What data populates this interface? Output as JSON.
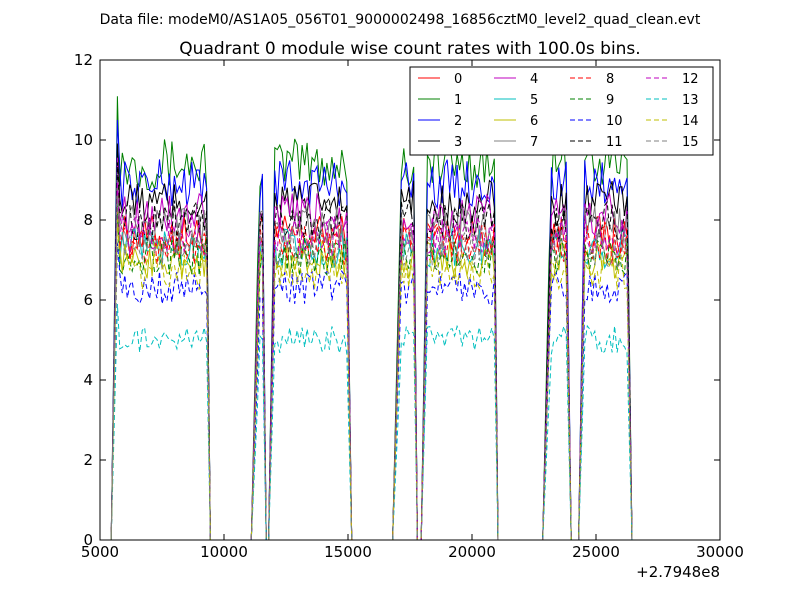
{
  "suptitle": "Data file: modeM0/AS1A05_056T01_9000002498_16856cztM0_level2_quad_clean.evt",
  "chart_data": {
    "type": "line",
    "title": "Quadrant 0 module wise count rates with 100.0s bins.",
    "xlabel": "",
    "ylabel": "",
    "xlim": [
      5000,
      30000
    ],
    "ylim": [
      0,
      12
    ],
    "x_offset_label": "+2.7948e8",
    "x_ticks": [
      5000,
      10000,
      15000,
      20000,
      25000,
      30000
    ],
    "y_ticks": [
      0,
      2,
      4,
      6,
      8,
      10,
      12
    ],
    "grid": false,
    "legend_placement": "top-right",
    "legend_columns": 4,
    "active_segments": [
      [
        5700,
        9300
      ],
      [
        11350,
        11550
      ],
      [
        12050,
        15000
      ],
      [
        17050,
        17650
      ],
      [
        18200,
        20900
      ],
      [
        23100,
        23850
      ],
      [
        24550,
        26300
      ]
    ],
    "series": [
      {
        "name": "0",
        "color": "#ff0000",
        "dash": "solid",
        "level": 7.6
      },
      {
        "name": "1",
        "color": "#008000",
        "dash": "solid",
        "level": 9.4
      },
      {
        "name": "2",
        "color": "#0000ff",
        "dash": "solid",
        "level": 8.9
      },
      {
        "name": "3",
        "color": "#000000",
        "dash": "solid",
        "level": 8.4
      },
      {
        "name": "4",
        "color": "#bf00bf",
        "dash": "solid",
        "level": 8.1
      },
      {
        "name": "5",
        "color": "#00bfbf",
        "dash": "solid",
        "level": 7.3
      },
      {
        "name": "6",
        "color": "#bfbf00",
        "dash": "solid",
        "level": 7.0
      },
      {
        "name": "7",
        "color": "#808080",
        "dash": "solid",
        "level": 7.8
      },
      {
        "name": "8",
        "color": "#ff0000",
        "dash": "dashed",
        "level": 7.4
      },
      {
        "name": "9",
        "color": "#008000",
        "dash": "dashed",
        "level": 7.1
      },
      {
        "name": "10",
        "color": "#0000ff",
        "dash": "dashed",
        "level": 6.3
      },
      {
        "name": "11",
        "color": "#000000",
        "dash": "dashed",
        "level": 8.0
      },
      {
        "name": "12",
        "color": "#bf00bf",
        "dash": "dashed",
        "level": 7.6
      },
      {
        "name": "13",
        "color": "#00bfbf",
        "dash": "dashed",
        "level": 5.0
      },
      {
        "name": "14",
        "color": "#bfbf00",
        "dash": "dashed",
        "level": 6.7
      },
      {
        "name": "15",
        "color": "#808080",
        "dash": "dashed",
        "level": 7.3
      }
    ]
  }
}
